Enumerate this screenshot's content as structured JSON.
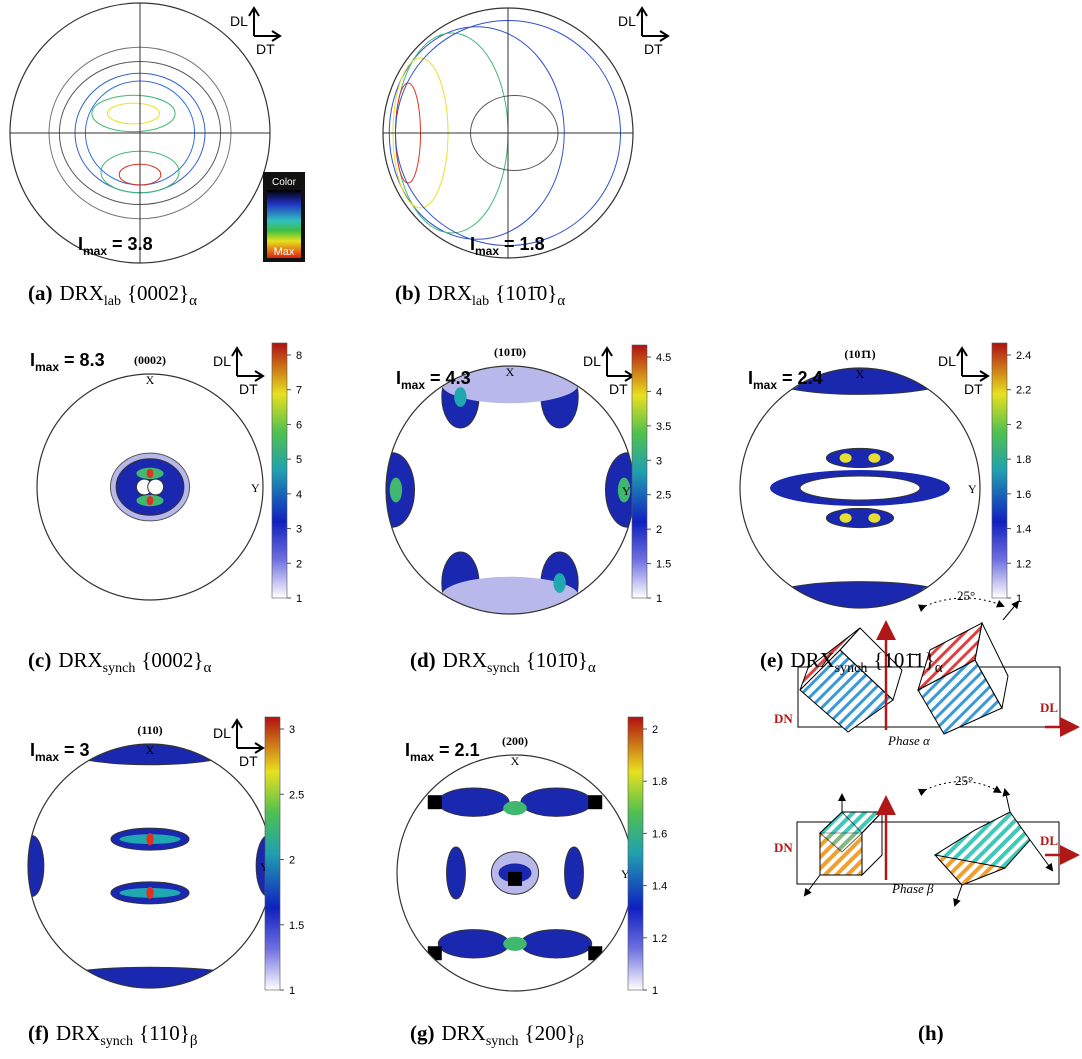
{
  "panels": [
    {
      "caption": {
        "letter": "(a)",
        "main": "DRX",
        "sub": "lab",
        "brace": "{0002}",
        "phase": "α"
      },
      "imax": {
        "symbol": "I",
        "sub": "max",
        "text": "= 3.8"
      },
      "axes": {
        "up": "DL",
        "right": "DT"
      },
      "legend": {
        "title": "Color",
        "max": "Max"
      }
    },
    {
      "caption": {
        "letter": "(b)",
        "main": "DRX",
        "sub": "lab",
        "brace": "{101̄0}",
        "phase": "α"
      },
      "imax": {
        "symbol": "I",
        "sub": "max",
        "text": "= 1.8"
      },
      "axes": {
        "up": "DL",
        "right": "DT"
      }
    },
    {
      "caption": {
        "letter": "(c)",
        "main": "DRX",
        "sub": "synch",
        "brace": "{0002}",
        "phase": "α"
      },
      "imax": {
        "symbol": "I",
        "sub": "max",
        "text": "= 8.3"
      },
      "axes": {
        "up": "DL",
        "right": "DT"
      },
      "pole": "(0002)",
      "x_label": "X",
      "y_label": "Y",
      "colorbar": [
        1,
        2,
        3,
        4,
        5,
        6,
        7,
        8
      ]
    },
    {
      "caption": {
        "letter": "(d)",
        "main": "DRX",
        "sub": "synch",
        "brace": "{101̄0}",
        "phase": "α"
      },
      "imax": {
        "symbol": "I",
        "sub": "max",
        "text": "= 4.3"
      },
      "axes": {
        "up": "DL",
        "right": "DT"
      },
      "pole": "(101̄0)",
      "x_label": "X",
      "y_label": "Y",
      "colorbar": [
        1,
        1.5,
        2,
        2.5,
        3,
        3.5,
        4,
        4.5
      ]
    },
    {
      "caption": {
        "letter": "(e)",
        "main": "DRX",
        "sub": "synch",
        "brace": "{101̄1}",
        "phase": "α"
      },
      "imax": {
        "symbol": "I",
        "sub": "max",
        "text": "= 2.4"
      },
      "axes": {
        "up": "DL",
        "right": "DT"
      },
      "pole": "(101̄1)",
      "x_label": "X",
      "y_label": "Y",
      "colorbar": [
        1,
        1.2,
        1.4,
        1.6,
        1.8,
        2,
        2.2,
        2.4
      ]
    },
    {
      "caption": {
        "letter": "(f)",
        "main": "DRX",
        "sub": "synch",
        "brace": "{110}",
        "phase": "β"
      },
      "imax": {
        "symbol": "I",
        "sub": "max",
        "text": "= 3"
      },
      "axes": {
        "up": "DL",
        "right": "DT"
      },
      "pole": "(110)",
      "x_label": "X",
      "y_label": "Y",
      "colorbar": [
        1,
        1.5,
        2,
        2.5,
        3
      ]
    },
    {
      "caption": {
        "letter": "(g)",
        "main": "DRX",
        "sub": "synch",
        "brace": "{200}",
        "phase": "β"
      },
      "imax": {
        "symbol": "I",
        "sub": "max",
        "text": "= 2.1"
      },
      "pole": "(200)",
      "x_label": "X",
      "y_label": "Y",
      "colorbar": [
        1,
        1.2,
        1.4,
        1.6,
        1.8,
        2
      ]
    }
  ],
  "schematic": {
    "caption": "(h)",
    "alpha": {
      "normal": "DN",
      "direction": "DL",
      "angle": "25°",
      "phase": "Phase α"
    },
    "beta": {
      "normal": "DN",
      "direction": "DL",
      "angle": "25°",
      "phase": "Phase β"
    }
  }
}
